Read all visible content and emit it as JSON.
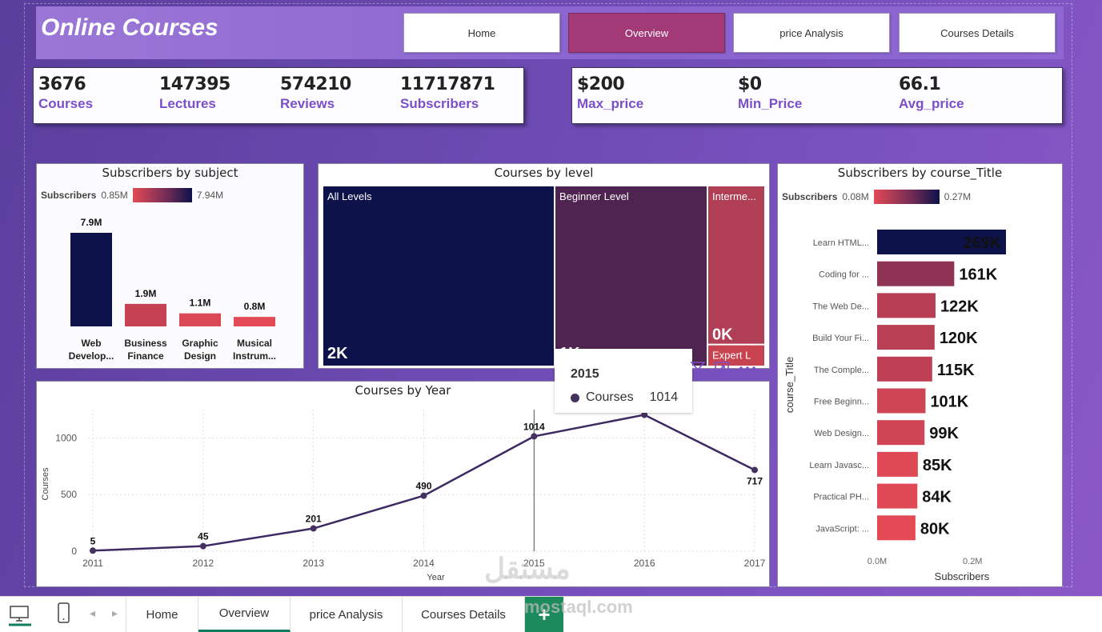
{
  "app": {
    "title": "Online Courses"
  },
  "nav": [
    {
      "label": "Home",
      "active": false
    },
    {
      "label": "Overview",
      "active": true
    },
    {
      "label": "price Analysis",
      "active": false
    },
    {
      "label": "Courses Details",
      "active": false
    }
  ],
  "kpis_left": [
    {
      "value": "3676",
      "label": "Courses"
    },
    {
      "value": "147395",
      "label": "Lectures"
    },
    {
      "value": "574210",
      "label": "Reviews"
    },
    {
      "value": "11717871",
      "label": "Subscribers"
    }
  ],
  "kpis_right": [
    {
      "value": "$200",
      "label": "Max_price"
    },
    {
      "value": "$0",
      "label": "Min_Price"
    },
    {
      "value": "66.1",
      "label": "Avg_price"
    }
  ],
  "subject_panel": {
    "title": "Subscribers by subject",
    "legend_label": "Subscribers",
    "legend_min": "0.85M",
    "legend_max": "7.94M"
  },
  "level_panel": {
    "title": "Courses by level"
  },
  "year_panel": {
    "title": "Courses by Year"
  },
  "title_panel": {
    "title": "Subscribers by course_Title",
    "legend_label": "Subscribers",
    "legend_min": "0.08M",
    "legend_max": "0.27M"
  },
  "tooltip": {
    "year": "2015",
    "series": "Courses",
    "value": "1014"
  },
  "bottom_tabs": [
    {
      "label": "Home",
      "active": false
    },
    {
      "label": "Overview",
      "active": true
    },
    {
      "label": "price Analysis",
      "active": false
    },
    {
      "label": "Courses Details",
      "active": false
    }
  ],
  "add_tab_label": "+",
  "watermark": {
    "text": "مستقل",
    "domain": "mostaql.com"
  },
  "colors": {
    "navy": "#0d124a",
    "red": "#e34a55",
    "accent": "#7b4fc8",
    "active_nav": "#a33a78"
  },
  "chart_data": [
    {
      "type": "bar",
      "title": "Subscribers by subject",
      "categories": [
        "Web Develop...",
        "Business Finance",
        "Graphic Design",
        "Musical Instrum..."
      ],
      "values": [
        7.9,
        1.9,
        1.1,
        0.8
      ],
      "value_labels": [
        "7.9M",
        "1.9M",
        "1.1M",
        "0.8M"
      ],
      "unit": "M"
    },
    {
      "type": "treemap",
      "title": "Courses by level",
      "categories": [
        "All Levels",
        "Beginner Level",
        "Interme...",
        "Expert L"
      ],
      "value_labels": [
        "2K",
        "1K",
        "0K",
        ""
      ],
      "values": [
        1929,
        1270,
        421,
        58
      ]
    },
    {
      "type": "line",
      "title": "Courses by Year",
      "x": [
        2011,
        2012,
        2013,
        2014,
        2015,
        2016,
        2017
      ],
      "series": [
        {
          "name": "Courses",
          "values": [
            5,
            45,
            201,
            490,
            1014,
            1204,
            717
          ]
        }
      ],
      "point_labels": [
        "5",
        "45",
        "201",
        "490",
        "1014",
        "",
        "717"
      ],
      "xlabel": "Year",
      "ylabel": "Courses",
      "y_ticks": [
        0,
        500,
        1000
      ],
      "ylim": [
        0,
        1250
      ]
    },
    {
      "type": "bar",
      "orientation": "horizontal",
      "title": "Subscribers by course_Title",
      "categories": [
        "Learn HTML...",
        "Coding for ...",
        "The Web De...",
        "Build Your Fi...",
        "The Comple...",
        "Free Beginn...",
        "Web Design...",
        "Learn Javasc...",
        "Practical PH...",
        "JavaScript: ..."
      ],
      "values": [
        269,
        161,
        122,
        120,
        115,
        101,
        99,
        85,
        84,
        80
      ],
      "value_labels": [
        "269K",
        "161K",
        "122K",
        "120K",
        "115K",
        "101K",
        "99K",
        "85K",
        "84K",
        "80K"
      ],
      "xlabel": "Subscribers",
      "ylabel": "course_Title",
      "x_ticks": [
        "0.0M",
        "0.2M"
      ],
      "xlim": [
        0,
        0.27
      ]
    }
  ]
}
